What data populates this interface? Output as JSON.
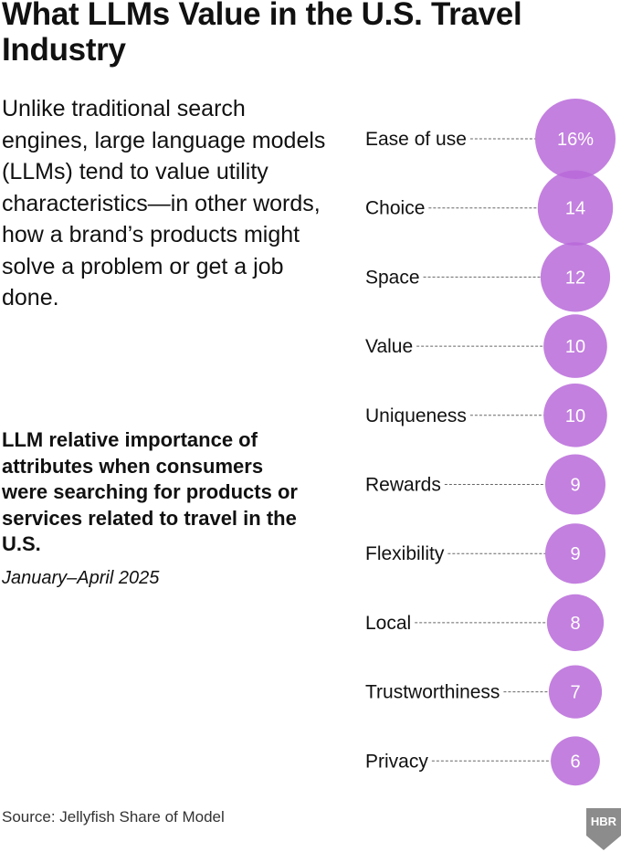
{
  "header": {
    "title": "What LLMs Value in the U.S. Travel Industry"
  },
  "intro": {
    "text": "Unlike traditional search engines, large language models (LLMs) tend to value utility characteristics—in other words, how a brand’s products might solve a problem or get a job done."
  },
  "chart_caption": {
    "subtitle": "LLM relative importance of attributes when consumers were searching for products or services related to travel in the U.S.",
    "date_range": "January–April 2025"
  },
  "footer": {
    "source": "Source: Jellyfish Share of Model",
    "logo_text": "HBR"
  },
  "colors": {
    "bubble": "#b86ad9",
    "bubble_text": "#ffffff",
    "leader": "#666666",
    "logo": "#8c8c8c"
  },
  "chart_data": {
    "type": "bubble",
    "title": "LLM relative importance of attributes when consumers were searching for products or services related to travel in the U.S.",
    "subtitle": "January–April 2025",
    "unit": "%",
    "categories": [
      "Ease of use",
      "Choice",
      "Space",
      "Value",
      "Uniqueness",
      "Rewards",
      "Flexibility",
      "Local",
      "Trustworthiness",
      "Privacy"
    ],
    "values": [
      16,
      14,
      12,
      10,
      10,
      9,
      9,
      8,
      7,
      6
    ],
    "value_labels": [
      "16%",
      "14",
      "12",
      "10",
      "10",
      "9",
      "9",
      "8",
      "7",
      "6"
    ]
  }
}
